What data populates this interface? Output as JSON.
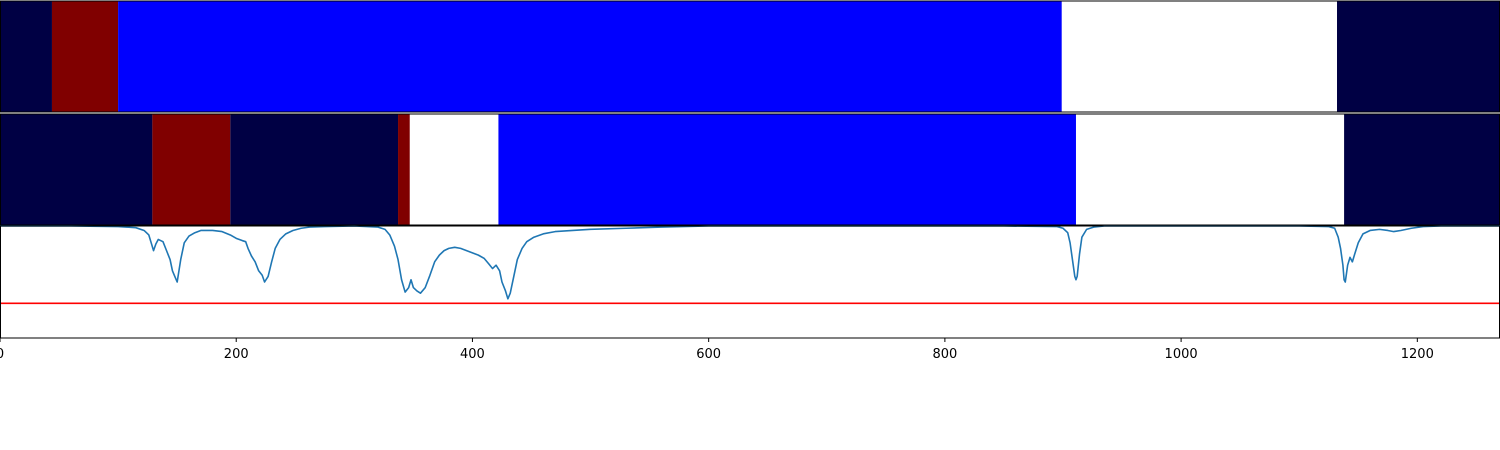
{
  "chart_data": {
    "type": "segmentation-timeline",
    "xlim": [
      0,
      1270
    ],
    "x_ticks": [
      0,
      200,
      400,
      600,
      800,
      1000,
      1200
    ],
    "x_tick_labels": [
      "0",
      "200",
      "400",
      "600",
      "800",
      "1000",
      "1200"
    ],
    "colors": {
      "dark_navy": "#000044",
      "dark_red": "#800000",
      "blue": "#0000ff",
      "white": "#ffffff",
      "line": "#1f77b4",
      "threshold": "#ff0000"
    },
    "rows": [
      {
        "segments": [
          {
            "start": 0,
            "end": 44,
            "color": "dark_navy"
          },
          {
            "start": 44,
            "end": 100,
            "color": "dark_red"
          },
          {
            "start": 100,
            "end": 899,
            "color": "blue"
          },
          {
            "start": 899,
            "end": 1132,
            "color": "white"
          },
          {
            "start": 1132,
            "end": 1270,
            "color": "dark_navy"
          }
        ]
      },
      {
        "segments": [
          {
            "start": 0,
            "end": 129,
            "color": "dark_navy"
          },
          {
            "start": 129,
            "end": 195,
            "color": "dark_red"
          },
          {
            "start": 195,
            "end": 337,
            "color": "dark_navy"
          },
          {
            "start": 337,
            "end": 347,
            "color": "dark_red"
          },
          {
            "start": 347,
            "end": 422,
            "color": "white"
          },
          {
            "start": 422,
            "end": 911,
            "color": "blue"
          },
          {
            "start": 911,
            "end": 1138,
            "color": "white"
          },
          {
            "start": 1138,
            "end": 1270,
            "color": "dark_navy"
          }
        ]
      }
    ],
    "signal": {
      "ylim": [
        0,
        1
      ],
      "threshold": 0.31,
      "points": [
        [
          0,
          1.0
        ],
        [
          60,
          1.0
        ],
        [
          100,
          0.995
        ],
        [
          115,
          0.985
        ],
        [
          122,
          0.96
        ],
        [
          126,
          0.92
        ],
        [
          128,
          0.85
        ],
        [
          130,
          0.78
        ],
        [
          132,
          0.84
        ],
        [
          134,
          0.88
        ],
        [
          138,
          0.86
        ],
        [
          141,
          0.78
        ],
        [
          144,
          0.7
        ],
        [
          146,
          0.6
        ],
        [
          148,
          0.55
        ],
        [
          150,
          0.5
        ],
        [
          153,
          0.7
        ],
        [
          156,
          0.85
        ],
        [
          160,
          0.91
        ],
        [
          165,
          0.94
        ],
        [
          170,
          0.96
        ],
        [
          180,
          0.96
        ],
        [
          188,
          0.95
        ],
        [
          195,
          0.92
        ],
        [
          200,
          0.89
        ],
        [
          205,
          0.87
        ],
        [
          208,
          0.86
        ],
        [
          210,
          0.8
        ],
        [
          213,
          0.73
        ],
        [
          216,
          0.68
        ],
        [
          219,
          0.6
        ],
        [
          222,
          0.56
        ],
        [
          224,
          0.5
        ],
        [
          227,
          0.55
        ],
        [
          230,
          0.68
        ],
        [
          233,
          0.8
        ],
        [
          237,
          0.88
        ],
        [
          242,
          0.93
        ],
        [
          248,
          0.96
        ],
        [
          255,
          0.98
        ],
        [
          262,
          0.99
        ],
        [
          275,
          0.995
        ],
        [
          300,
          1.0
        ],
        [
          320,
          0.99
        ],
        [
          326,
          0.97
        ],
        [
          330,
          0.92
        ],
        [
          334,
          0.82
        ],
        [
          337,
          0.7
        ],
        [
          340,
          0.52
        ],
        [
          343,
          0.41
        ],
        [
          346,
          0.45
        ],
        [
          348,
          0.52
        ],
        [
          350,
          0.45
        ],
        [
          353,
          0.42
        ],
        [
          356,
          0.4
        ],
        [
          360,
          0.45
        ],
        [
          364,
          0.56
        ],
        [
          368,
          0.68
        ],
        [
          372,
          0.74
        ],
        [
          376,
          0.78
        ],
        [
          380,
          0.8
        ],
        [
          385,
          0.81
        ],
        [
          390,
          0.8
        ],
        [
          395,
          0.78
        ],
        [
          400,
          0.76
        ],
        [
          405,
          0.74
        ],
        [
          410,
          0.71
        ],
        [
          414,
          0.66
        ],
        [
          417,
          0.62
        ],
        [
          420,
          0.65
        ],
        [
          423,
          0.6
        ],
        [
          425,
          0.5
        ],
        [
          428,
          0.42
        ],
        [
          430,
          0.35
        ],
        [
          432,
          0.4
        ],
        [
          435,
          0.55
        ],
        [
          438,
          0.7
        ],
        [
          442,
          0.8
        ],
        [
          446,
          0.86
        ],
        [
          452,
          0.9
        ],
        [
          460,
          0.93
        ],
        [
          470,
          0.95
        ],
        [
          485,
          0.96
        ],
        [
          500,
          0.97
        ],
        [
          530,
          0.98
        ],
        [
          560,
          0.99
        ],
        [
          600,
          1.0
        ],
        [
          700,
          1.0
        ],
        [
          850,
          1.0
        ],
        [
          895,
          0.995
        ],
        [
          900,
          0.98
        ],
        [
          904,
          0.94
        ],
        [
          906,
          0.85
        ],
        [
          908,
          0.7
        ],
        [
          910,
          0.55
        ],
        [
          911,
          0.52
        ],
        [
          912,
          0.55
        ],
        [
          914,
          0.75
        ],
        [
          916,
          0.9
        ],
        [
          920,
          0.97
        ],
        [
          926,
          0.99
        ],
        [
          935,
          1.0
        ],
        [
          1000,
          1.0
        ],
        [
          1100,
          1.0
        ],
        [
          1125,
          0.995
        ],
        [
          1130,
          0.98
        ],
        [
          1133,
          0.9
        ],
        [
          1135,
          0.8
        ],
        [
          1137,
          0.65
        ],
        [
          1138,
          0.52
        ],
        [
          1139,
          0.5
        ],
        [
          1141,
          0.65
        ],
        [
          1143,
          0.72
        ],
        [
          1145,
          0.68
        ],
        [
          1147,
          0.75
        ],
        [
          1150,
          0.85
        ],
        [
          1154,
          0.93
        ],
        [
          1160,
          0.96
        ],
        [
          1168,
          0.97
        ],
        [
          1175,
          0.96
        ],
        [
          1180,
          0.95
        ],
        [
          1186,
          0.96
        ],
        [
          1195,
          0.98
        ],
        [
          1205,
          0.995
        ],
        [
          1220,
          1.0
        ],
        [
          1270,
          1.0
        ]
      ]
    }
  }
}
